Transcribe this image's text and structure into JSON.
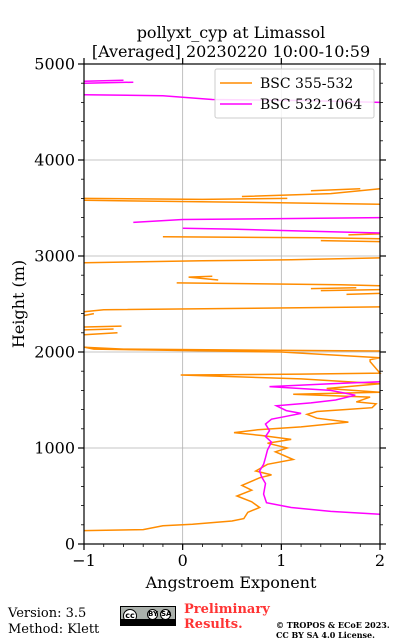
{
  "chart_data": {
    "type": "line",
    "title": "pollyxt_cyp at Limassol",
    "subtitle": "[Averaged] 20230220 10:00-10:59",
    "xlabel": "Angstroem Exponent",
    "ylabel": "Height (m)",
    "xlim": [
      -1,
      2
    ],
    "ylim": [
      0,
      5000
    ],
    "xticks": [
      -1,
      0,
      1,
      2
    ],
    "yticks": [
      0,
      1000,
      2000,
      3000,
      4000,
      5000
    ],
    "grid": true,
    "legend_position": "top-right",
    "series": [
      {
        "name": "BSC 355-532",
        "color": "#ff8c00",
        "points": [
          [
            -1.0,
            140
          ],
          [
            -0.4,
            150
          ],
          [
            -0.2,
            190
          ],
          [
            0.1,
            205
          ],
          [
            0.5,
            240
          ],
          [
            0.62,
            265
          ],
          [
            0.66,
            330
          ],
          [
            0.78,
            380
          ],
          [
            0.7,
            440
          ],
          [
            0.55,
            500
          ],
          [
            0.7,
            560
          ],
          [
            0.6,
            610
          ],
          [
            0.78,
            690
          ],
          [
            0.9,
            720
          ],
          [
            0.74,
            760
          ],
          [
            0.86,
            830
          ],
          [
            1.12,
            880
          ],
          [
            0.94,
            960
          ],
          [
            1.06,
            1000
          ],
          [
            0.86,
            1050
          ],
          [
            1.1,
            1090
          ],
          [
            0.8,
            1130
          ],
          [
            0.52,
            1160
          ],
          [
            0.76,
            1190
          ],
          [
            1.2,
            1220
          ],
          [
            1.68,
            1270
          ],
          [
            1.36,
            1310
          ],
          [
            1.26,
            1350
          ],
          [
            1.36,
            1380
          ],
          [
            1.64,
            1400
          ],
          [
            1.92,
            1420
          ],
          [
            1.96,
            1460
          ],
          [
            1.76,
            1480
          ],
          [
            1.9,
            1530
          ],
          [
            1.12,
            1560
          ],
          [
            2.0,
            1580
          ],
          [
            1.46,
            1620
          ],
          [
            2.0,
            1670
          ],
          [
            1.2,
            1720
          ],
          [
            -0.02,
            1760
          ],
          [
            1.2,
            1770
          ],
          [
            2.0,
            1780
          ],
          [
            1.9,
            1900
          ],
          [
            1.9,
            1920
          ],
          [
            2.0,
            1940
          ],
          [
            1.0,
            2000
          ],
          [
            -0.9,
            2030
          ],
          [
            -1.0,
            2050
          ],
          [
            -0.6,
            2030
          ],
          [
            2.0,
            2010
          ]
        ]
      },
      {
        "name": "BSC 532-1064",
        "color": "#ff00ff",
        "points": [
          [
            2.0,
            310
          ],
          [
            1.5,
            340
          ],
          [
            1.1,
            380
          ],
          [
            0.85,
            430
          ],
          [
            0.82,
            520
          ],
          [
            0.84,
            630
          ],
          [
            0.8,
            700
          ],
          [
            0.78,
            760
          ],
          [
            0.82,
            830
          ],
          [
            0.84,
            900
          ],
          [
            0.86,
            980
          ],
          [
            0.9,
            1060
          ],
          [
            0.84,
            1120
          ],
          [
            0.88,
            1180
          ],
          [
            0.84,
            1250
          ],
          [
            0.9,
            1300
          ],
          [
            1.05,
            1330
          ],
          [
            1.2,
            1360
          ],
          [
            1.05,
            1390
          ],
          [
            0.95,
            1440
          ],
          [
            1.3,
            1470
          ],
          [
            1.55,
            1500
          ],
          [
            1.75,
            1550
          ],
          [
            1.5,
            1600
          ],
          [
            0.88,
            1640
          ],
          [
            1.5,
            1670
          ],
          [
            2.0,
            1690
          ]
        ]
      }
    ],
    "segments_355_532": [
      [
        [
          -1.0,
          2180
        ],
        [
          -0.66,
          2200
        ]
      ],
      [
        [
          -1.0,
          2230
        ],
        [
          -0.7,
          2240
        ]
      ],
      [
        [
          -1.0,
          2260
        ],
        [
          -0.62,
          2270
        ]
      ],
      [
        [
          -1.0,
          2380
        ],
        [
          -0.9,
          2400
        ]
      ],
      [
        [
          -1.0,
          2420
        ],
        [
          -0.8,
          2440
        ],
        [
          2.0,
          2470
        ]
      ],
      [
        [
          1.66,
          2600
        ],
        [
          2.0,
          2610
        ]
      ],
      [
        [
          1.4,
          2640
        ],
        [
          2.0,
          2650
        ]
      ],
      [
        [
          1.3,
          2660
        ],
        [
          1.76,
          2670
        ]
      ],
      [
        [
          -0.06,
          2720
        ],
        [
          1.6,
          2700
        ],
        [
          2.0,
          2690
        ]
      ],
      [
        [
          0.36,
          2750
        ],
        [
          0.06,
          2780
        ],
        [
          0.3,
          2790
        ]
      ],
      [
        [
          -1.0,
          2930
        ],
        [
          0.2,
          2950
        ],
        [
          1.1,
          2960
        ],
        [
          2.0,
          2980
        ]
      ],
      [
        [
          -0.2,
          3200
        ],
        [
          1.4,
          3190
        ],
        [
          2.0,
          3180
        ]
      ],
      [
        [
          1.4,
          3160
        ],
        [
          2.0,
          3150
        ]
      ],
      [
        [
          1.68,
          3220
        ],
        [
          2.0,
          3230
        ]
      ],
      [
        [
          -1.0,
          3580
        ],
        [
          0.6,
          3560
        ],
        [
          2.0,
          3540
        ]
      ],
      [
        [
          -1.0,
          3600
        ],
        [
          0.2,
          3590
        ],
        [
          1.06,
          3600
        ]
      ],
      [
        [
          0.6,
          3620
        ],
        [
          1.5,
          3650
        ],
        [
          2.0,
          3700
        ]
      ],
      [
        [
          1.3,
          3680
        ],
        [
          1.8,
          3700
        ]
      ]
    ],
    "segments_532_1064": [
      [
        [
          -1.0,
          4680
        ],
        [
          -0.2,
          4670
        ],
        [
          0.3,
          4630
        ],
        [
          1.2,
          4620
        ],
        [
          2.0,
          4600
        ]
      ],
      [
        [
          -1.0,
          4800
        ],
        [
          -0.5,
          4810
        ]
      ],
      [
        [
          -1.0,
          4820
        ],
        [
          -0.6,
          4830
        ]
      ],
      [
        [
          -0.5,
          3350
        ],
        [
          0.0,
          3380
        ],
        [
          1.0,
          3390
        ],
        [
          2.0,
          3400
        ]
      ],
      [
        [
          0.0,
          3290
        ],
        [
          0.5,
          3280
        ],
        [
          1.2,
          3260
        ],
        [
          2.0,
          3240
        ]
      ]
    ],
    "labels": {
      "version": "Version: 3.5",
      "method": "Method: Klett",
      "prelim1": "Preliminary",
      "prelim2": "Results.",
      "copy1": "© TROPOS & ECoE 2023.",
      "copy2": "CC BY SA 4.0 License.",
      "cc": "cc",
      "by": "BY",
      "sa": "SA"
    }
  }
}
